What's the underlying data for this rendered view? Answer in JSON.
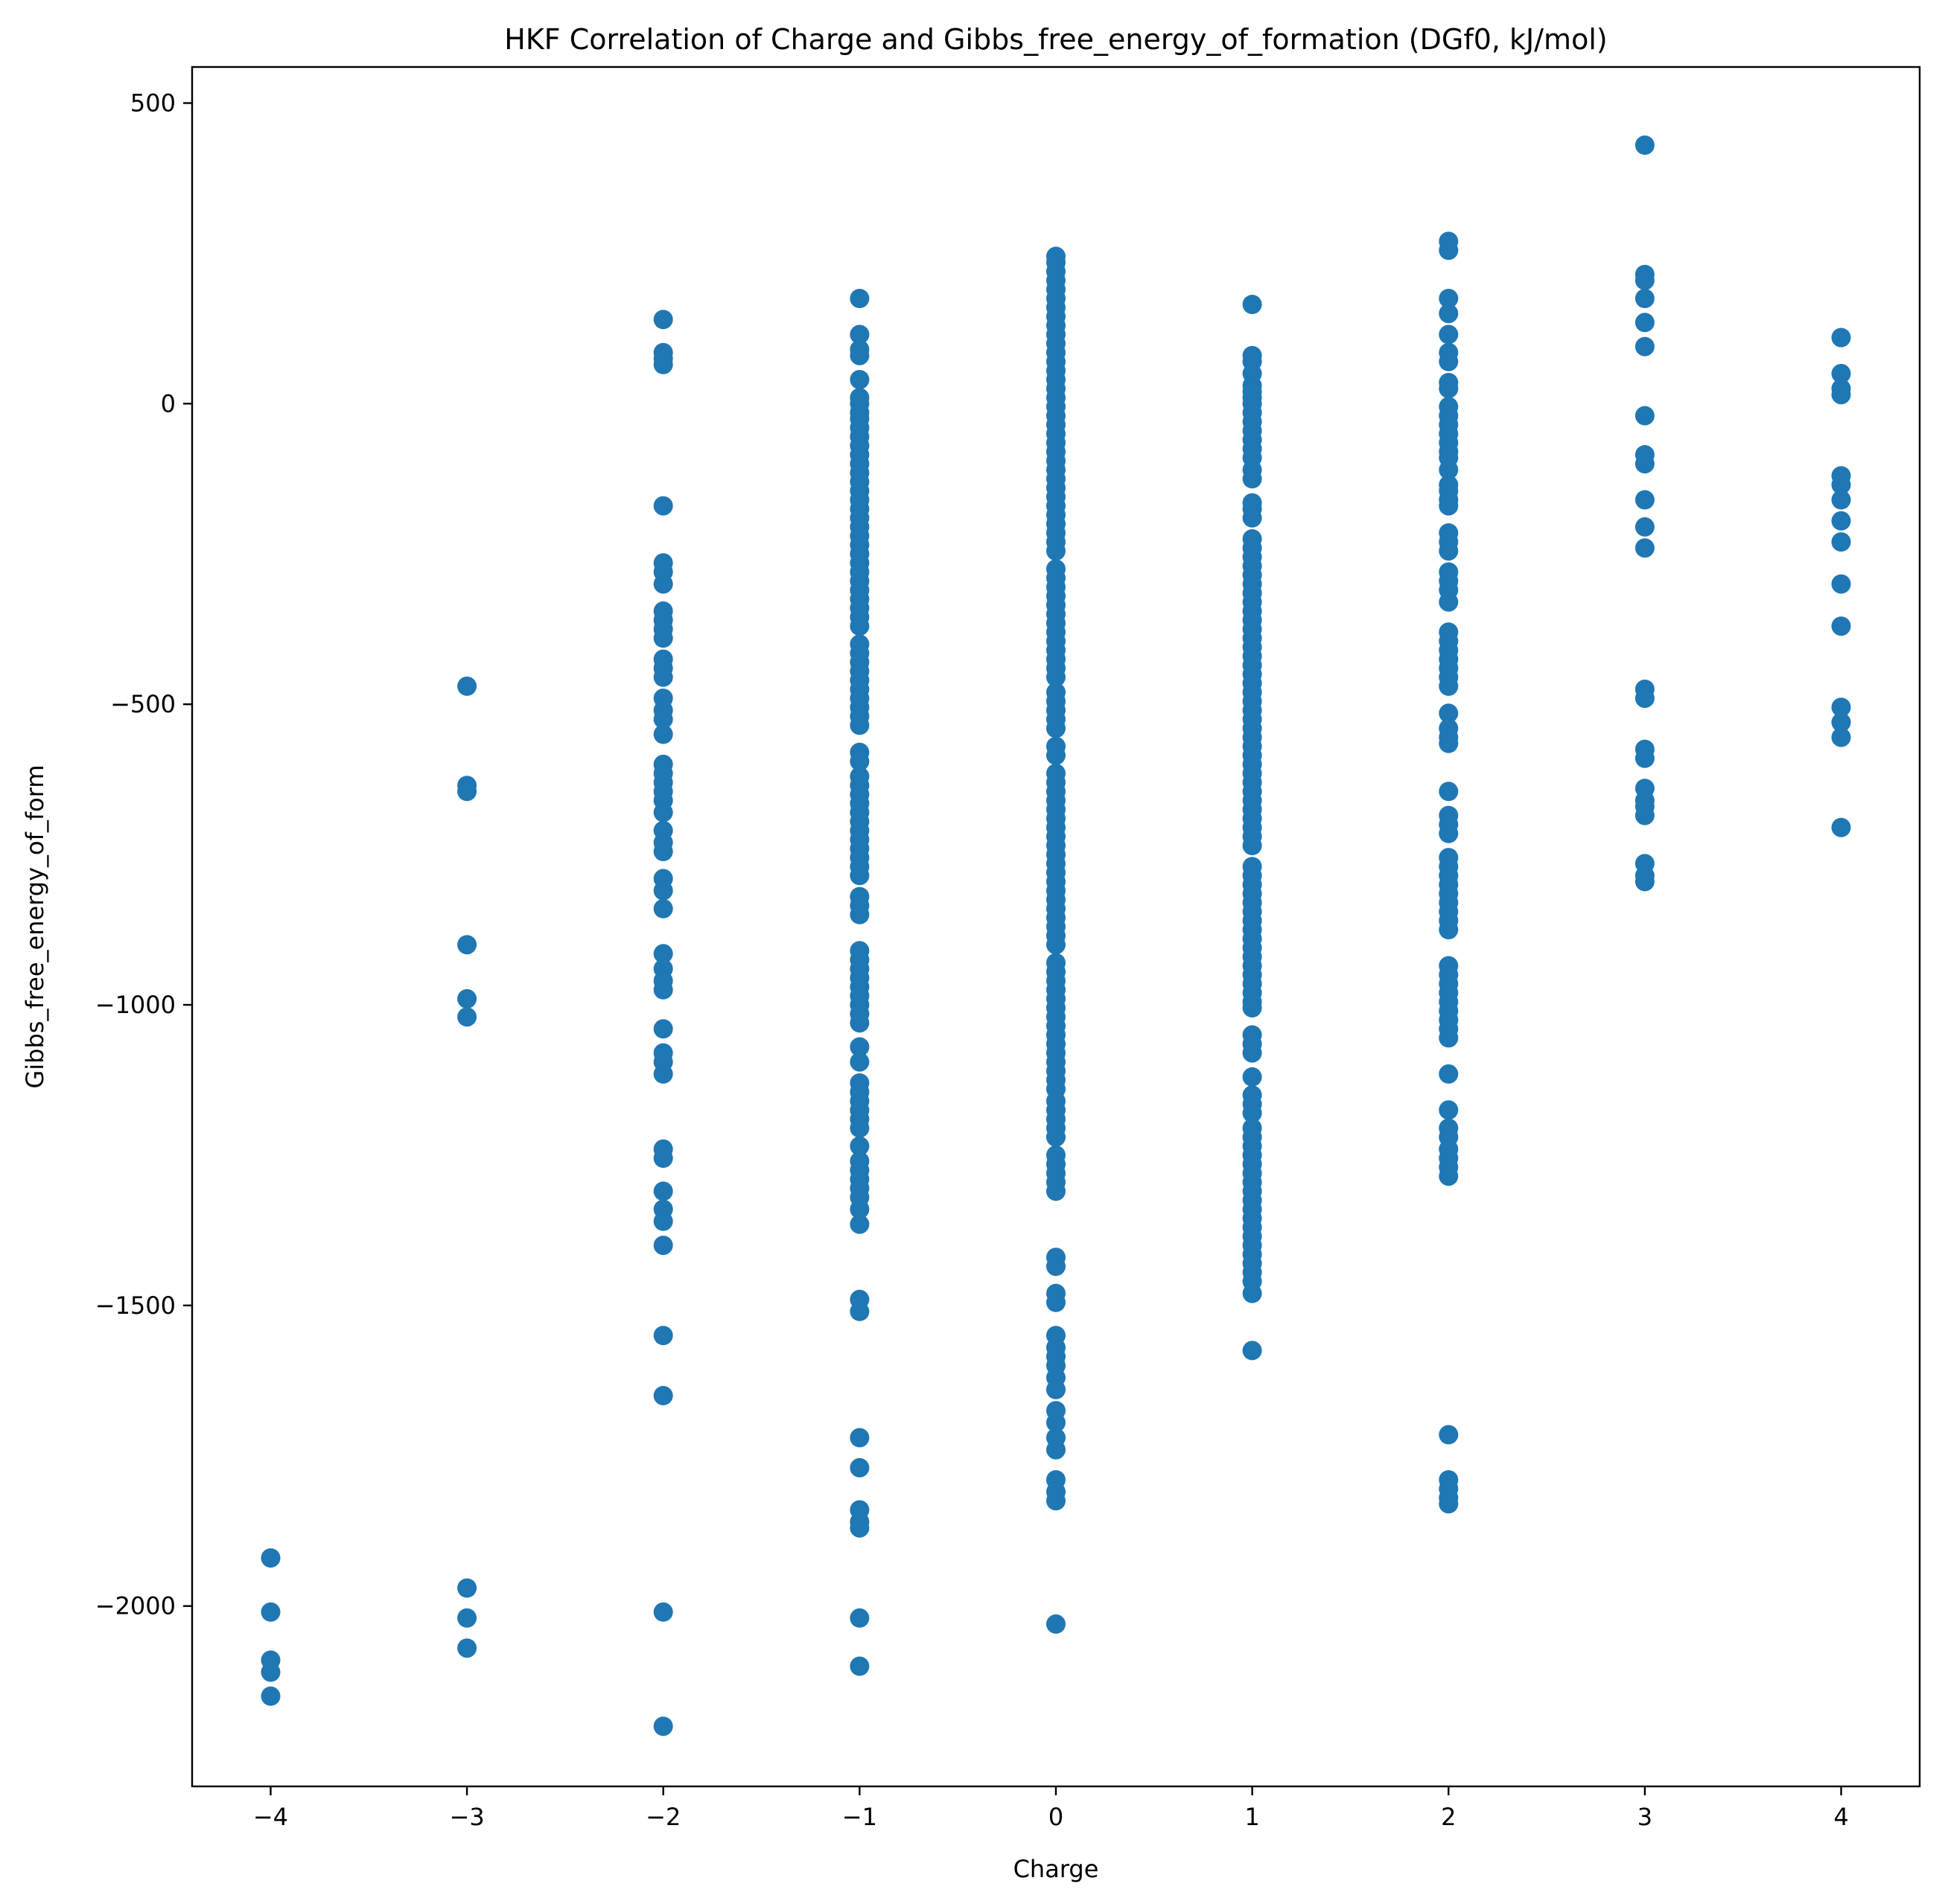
{
  "chart_data": {
    "type": "scatter",
    "title": "HKF Correlation of Charge and Gibbs_free_energy_of_formation (DGf0, kJ/mol)",
    "xlabel": "Charge",
    "ylabel": "Gibbs_free_energy_of_form",
    "xlim": [
      -4.4,
      4.4
    ],
    "ylim": [
      -2300,
      560
    ],
    "x_ticks": [
      -4,
      -3,
      -2,
      -1,
      0,
      1,
      2,
      3,
      4
    ],
    "x_tick_labels": [
      "−4",
      "−3",
      "−2",
      "−1",
      "0",
      "1",
      "2",
      "3",
      "4"
    ],
    "y_ticks": [
      500,
      0,
      -500,
      -1000,
      -1500,
      -2000
    ],
    "y_tick_labels": [
      "500",
      "0",
      "−500",
      "−1000",
      "−1500",
      "−2000"
    ],
    "grid": false,
    "marker_color": "#1f77b4",
    "points_by_charge": [
      {
        "x": -4,
        "y": [
          -1920,
          -2010,
          -2090,
          -2110,
          -2150
        ]
      },
      {
        "x": -3,
        "y": [
          -470,
          -635,
          -645,
          -900,
          -990,
          -1020,
          -1970,
          -2020,
          -2070
        ]
      },
      {
        "x": -2,
        "y": [
          140,
          85,
          75,
          65,
          -170,
          -265,
          -280,
          -300,
          -345,
          -360,
          -375,
          -390,
          -425,
          -440,
          -455,
          -490,
          -510,
          -525,
          -550,
          -600,
          -615,
          -630,
          -645,
          -660,
          -680,
          -710,
          -730,
          -745,
          -790,
          -810,
          -840,
          -915,
          -940,
          -960,
          -975,
          -1040,
          -1080,
          -1095,
          -1115,
          -1240,
          -1255,
          -1310,
          -1340,
          -1360,
          -1400,
          -1550,
          -1650,
          -2010,
          -2200
        ]
      },
      {
        "x": -1,
        "y": [
          175,
          115,
          90,
          80,
          40,
          10,
          0,
          -15,
          -25,
          -40,
          -55,
          -70,
          -85,
          -100,
          -115,
          -130,
          -145,
          -160,
          -175,
          -190,
          -205,
          -220,
          -235,
          -250,
          -265,
          -280,
          -295,
          -310,
          -325,
          -340,
          -355,
          -370,
          -400,
          -415,
          -430,
          -445,
          -460,
          -475,
          -490,
          -505,
          -520,
          -535,
          -580,
          -595,
          -620,
          -635,
          -650,
          -665,
          -680,
          -695,
          -710,
          -725,
          -740,
          -755,
          -770,
          -785,
          -820,
          -835,
          -850,
          -910,
          -925,
          -940,
          -955,
          -970,
          -985,
          -1000,
          -1015,
          -1030,
          -1070,
          -1095,
          -1130,
          -1145,
          -1160,
          -1175,
          -1190,
          -1205,
          -1235,
          -1260,
          -1275,
          -1290,
          -1305,
          -1320,
          -1340,
          -1365,
          -1490,
          -1510,
          -1720,
          -1770,
          -1840,
          -1860,
          -1870,
          -2020,
          -2100
        ]
      },
      {
        "x": 0,
        "y": [
          245,
          235,
          220,
          205,
          190,
          175,
          160,
          145,
          130,
          115,
          100,
          85,
          70,
          55,
          40,
          25,
          10,
          -5,
          -20,
          -35,
          -50,
          -65,
          -80,
          -95,
          -110,
          -125,
          -140,
          -155,
          -170,
          -185,
          -200,
          -215,
          -230,
          -245,
          -275,
          -290,
          -305,
          -320,
          -335,
          -350,
          -365,
          -380,
          -395,
          -410,
          -425,
          -440,
          -455,
          -480,
          -495,
          -510,
          -525,
          -540,
          -570,
          -585,
          -615,
          -630,
          -645,
          -660,
          -675,
          -690,
          -705,
          -720,
          -735,
          -750,
          -765,
          -780,
          -795,
          -810,
          -825,
          -840,
          -855,
          -870,
          -885,
          -900,
          -930,
          -945,
          -960,
          -975,
          -990,
          -1005,
          -1020,
          -1035,
          -1050,
          -1065,
          -1080,
          -1095,
          -1110,
          -1125,
          -1140,
          -1160,
          -1175,
          -1190,
          -1205,
          -1220,
          -1250,
          -1265,
          -1280,
          -1295,
          -1310,
          -1420,
          -1435,
          -1480,
          -1495,
          -1550,
          -1570,
          -1585,
          -1600,
          -1620,
          -1640,
          -1675,
          -1695,
          -1720,
          -1740,
          -1790,
          -1810,
          -1825,
          -2030
        ]
      },
      {
        "x": 1,
        "y": [
          165,
          80,
          70,
          50,
          30,
          20,
          10,
          0,
          -15,
          -30,
          -45,
          -60,
          -75,
          -90,
          -110,
          -125,
          -165,
          -175,
          -190,
          -225,
          -240,
          -255,
          -270,
          -285,
          -300,
          -315,
          -330,
          -345,
          -360,
          -375,
          -390,
          -405,
          -420,
          -435,
          -450,
          -465,
          -480,
          -495,
          -510,
          -525,
          -540,
          -555,
          -570,
          -585,
          -600,
          -615,
          -630,
          -645,
          -660,
          -675,
          -690,
          -705,
          -720,
          -735,
          -770,
          -785,
          -800,
          -815,
          -830,
          -845,
          -860,
          -875,
          -890,
          -905,
          -920,
          -935,
          -950,
          -965,
          -980,
          -995,
          -1005,
          -1050,
          -1065,
          -1080,
          -1120,
          -1150,
          -1165,
          -1180,
          -1205,
          -1220,
          -1235,
          -1250,
          -1265,
          -1280,
          -1295,
          -1310,
          -1325,
          -1340,
          -1355,
          -1370,
          -1385,
          -1400,
          -1415,
          -1430,
          -1445,
          -1460,
          -1480,
          -1575
        ]
      },
      {
        "x": 2,
        "y": [
          270,
          255,
          175,
          150,
          115,
          85,
          70,
          35,
          25,
          -5,
          -20,
          -35,
          -50,
          -65,
          -80,
          -90,
          -110,
          -135,
          -145,
          -160,
          -170,
          -215,
          -230,
          -245,
          -280,
          -295,
          -310,
          -330,
          -380,
          -395,
          -410,
          -425,
          -440,
          -455,
          -470,
          -515,
          -540,
          -555,
          -565,
          -645,
          -685,
          -700,
          -715,
          -755,
          -770,
          -785,
          -800,
          -815,
          -830,
          -845,
          -860,
          -875,
          -935,
          -950,
          -965,
          -980,
          -995,
          -1010,
          -1025,
          -1040,
          -1055,
          -1115,
          -1175,
          -1205,
          -1220,
          -1240,
          -1255,
          -1270,
          -1285,
          -1715,
          -1790,
          -1805,
          -1820,
          -1830
        ]
      },
      {
        "x": 3,
        "y": [
          430,
          215,
          205,
          175,
          135,
          95,
          -20,
          -85,
          -100,
          -160,
          -205,
          -240,
          -475,
          -490,
          -575,
          -590,
          -640,
          -660,
          -670,
          -685,
          -765,
          -785,
          -795
        ]
      },
      {
        "x": 4,
        "y": [
          110,
          50,
          25,
          15,
          -120,
          -135,
          -160,
          -195,
          -230,
          -300,
          -370,
          -505,
          -530,
          -555,
          -705
        ]
      }
    ]
  }
}
